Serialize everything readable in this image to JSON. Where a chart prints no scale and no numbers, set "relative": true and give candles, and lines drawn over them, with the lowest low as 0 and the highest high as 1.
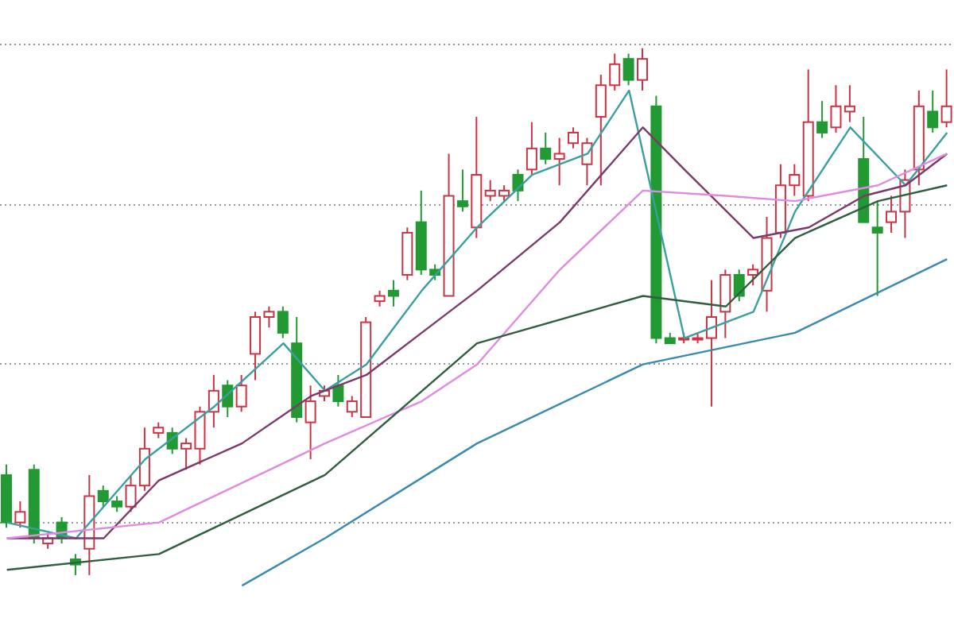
{
  "chart_data": {
    "type": "candlestick",
    "relative": true,
    "grid": "y",
    "marker": "none",
    "line_style": "solid",
    "categories": [
      null,
      null,
      null,
      null,
      null,
      null,
      null,
      null,
      null,
      null,
      null,
      null,
      null,
      null,
      null,
      null,
      null,
      null,
      null,
      null,
      null,
      null,
      null,
      null,
      null,
      null,
      null,
      null,
      null,
      null,
      null,
      null,
      null,
      null,
      null,
      null,
      null,
      null,
      null,
      null,
      null,
      null,
      null,
      null,
      null,
      null,
      null,
      null,
      null,
      null,
      null,
      null,
      null,
      null,
      null,
      null,
      null,
      null,
      null,
      null,
      null,
      null,
      null,
      null,
      null,
      null,
      null,
      null,
      null
    ],
    "colors": [
      "#229933",
      "#cc3344",
      "#229933",
      "#cc3344",
      "#229933",
      "#229933",
      "#cc3344",
      "#229933",
      "#229933",
      "#cc3344",
      "#cc3344",
      "#cc3344",
      "#229933",
      "#cc3344",
      "#cc3344",
      "#cc3344",
      "#229933",
      "#cc3344",
      "#cc3344",
      "#cc3344",
      "#229933",
      "#229933",
      "#cc3344",
      "#cc3344",
      "#229933",
      "#cc3344",
      "#cc3344",
      "#cc3344",
      "#229933",
      "#cc3344",
      "#229933",
      "#229933",
      "#cc3344",
      "#229933",
      "#cc3344",
      "#cc3344",
      "#cc3344",
      "#229933",
      "#cc3344",
      "#229933",
      "#cc3344",
      "#cc3344",
      "#cc3344",
      "#cc3344",
      "#cc3344",
      "#229933",
      "#cc3344",
      "#229933",
      "#229933",
      "#cc3344",
      "#cc3344",
      "#cc3344",
      "#cc3344",
      "#229933",
      "#cc3344",
      "#cc3344",
      "#cc3344",
      "#cc3344",
      "#cc3344",
      "#229933",
      "#cc3344",
      "#cc3344",
      "#229933",
      "#229933",
      "#cc3344",
      "#cc3344",
      "#cc3344",
      "#229933",
      "#cc3344"
    ],
    "ohlc": [
      [
        0.19,
        0.21,
        0.09,
        0.1
      ],
      [
        0.1,
        0.14,
        0.09,
        0.12
      ],
      [
        0.2,
        0.21,
        0.06,
        0.07
      ],
      [
        0.06,
        0.08,
        0.05,
        0.07
      ],
      [
        0.1,
        0.11,
        0.06,
        0.07
      ],
      [
        0.03,
        0.04,
        0,
        0.02
      ],
      [
        0.05,
        0.19,
        0,
        0.15
      ],
      [
        0.16,
        0.17,
        0.13,
        0.14
      ],
      [
        0.14,
        0.15,
        0.12,
        0.13
      ],
      [
        0.13,
        0.19,
        0.12,
        0.17
      ],
      [
        0.17,
        0.28,
        0.16,
        0.24
      ],
      [
        0.27,
        0.29,
        0.26,
        0.28
      ],
      [
        0.27,
        0.28,
        0.23,
        0.24
      ],
      [
        0.24,
        0.26,
        0.2,
        0.25
      ],
      [
        0.24,
        0.32,
        0.21,
        0.31
      ],
      [
        0.31,
        0.38,
        0.28,
        0.35
      ],
      [
        0.36,
        0.37,
        0.3,
        0.32
      ],
      [
        0.32,
        0.38,
        0.31,
        0.36
      ],
      [
        0.42,
        0.5,
        0.37,
        0.49
      ],
      [
        0.49,
        0.51,
        0.47,
        0.5
      ],
      [
        0.5,
        0.51,
        0.45,
        0.46
      ],
      [
        0.44,
        0.49,
        0.29,
        0.3
      ],
      [
        0.29,
        0.36,
        0.22,
        0.33
      ],
      [
        0.34,
        0.36,
        0.33,
        0.35
      ],
      [
        0.36,
        0.38,
        0.32,
        0.33
      ],
      [
        0.31,
        0.34,
        0.3,
        0.33
      ],
      [
        0.3,
        0.49,
        0.3,
        0.48
      ],
      [
        0.52,
        0.54,
        0.51,
        0.53
      ],
      [
        0.54,
        0.56,
        0.51,
        0.53
      ],
      [
        0.57,
        0.66,
        0.56,
        0.65
      ],
      [
        0.67,
        0.73,
        0.57,
        0.58
      ],
      [
        0.58,
        0.59,
        0.56,
        0.57
      ],
      [
        0.53,
        0.8,
        0.53,
        0.72
      ],
      [
        0.71,
        0.77,
        0.69,
        0.7
      ],
      [
        0.66,
        0.87,
        0.64,
        0.76
      ],
      [
        0.72,
        0.75,
        0.71,
        0.73
      ],
      [
        0.72,
        0.74,
        0.71,
        0.73
      ],
      [
        0.76,
        0.77,
        0.71,
        0.73
      ],
      [
        0.77,
        0.86,
        0.76,
        0.81
      ],
      [
        0.81,
        0.84,
        0.78,
        0.79
      ],
      [
        0.79,
        0.83,
        0.74,
        0.8
      ],
      [
        0.82,
        0.85,
        0.81,
        0.84
      ],
      [
        0.78,
        0.83,
        0.74,
        0.82
      ],
      [
        0.87,
        0.95,
        0.74,
        0.93
      ],
      [
        0.93,
        0.99,
        0.92,
        0.97
      ],
      [
        0.98,
        0.99,
        0.93,
        0.94
      ],
      [
        0.94,
        1,
        0.92,
        0.98
      ],
      [
        0.89,
        0.91,
        0.44,
        0.45
      ],
      [
        0.45,
        0.46,
        0.44,
        0.44
      ],
      [
        0.45,
        0.46,
        0.44,
        0.45
      ],
      [
        0.45,
        0.46,
        0.44,
        0.45
      ],
      [
        0.45,
        0.56,
        0.32,
        0.49
      ],
      [
        0.5,
        0.58,
        0.45,
        0.57
      ],
      [
        0.57,
        0.58,
        0.52,
        0.53
      ],
      [
        0.57,
        0.59,
        0.55,
        0.58
      ],
      [
        0.54,
        0.68,
        0.5,
        0.64
      ],
      [
        0.65,
        0.78,
        0.64,
        0.74
      ],
      [
        0.74,
        0.78,
        0.72,
        0.76
      ],
      [
        0.72,
        0.96,
        0.71,
        0.86
      ],
      [
        0.86,
        0.9,
        0.83,
        0.84
      ],
      [
        0.85,
        0.93,
        0.84,
        0.89
      ],
      [
        0.88,
        0.93,
        0.86,
        0.89
      ],
      [
        0.79,
        0.87,
        0.67,
        0.67
      ],
      [
        0.66,
        0.71,
        0.53,
        0.65
      ],
      [
        0.67,
        0.72,
        0.65,
        0.69
      ],
      [
        0.69,
        0.77,
        0.64,
        0.75
      ],
      [
        0.77,
        0.92,
        0.74,
        0.89
      ],
      [
        0.88,
        0.92,
        0.84,
        0.85
      ],
      [
        0.86,
        0.96,
        0.85,
        0.89
      ]
    ],
    "series": [
      {
        "type": "line",
        "color": "#3a9f9f",
        "values": [
          0.1,
          null,
          null,
          null,
          null,
          0.07,
          null,
          null,
          null,
          null,
          0.22,
          null,
          null,
          null,
          null,
          0.32,
          null,
          null,
          null,
          null,
          0.44,
          null,
          null,
          0.35,
          null,
          null,
          0.4,
          null,
          null,
          null,
          0.54,
          null,
          null,
          null,
          0.66,
          null,
          null,
          null,
          0.76,
          null,
          null,
          null,
          0.8,
          null,
          null,
          0.92,
          null,
          null,
          null,
          0.45,
          null,
          null,
          null,
          null,
          0.5,
          null,
          null,
          0.69,
          null,
          null,
          null,
          0.85,
          null,
          null,
          null,
          0.74,
          null,
          null,
          0.84
        ]
      },
      {
        "type": "line",
        "color": "#7a3a6a",
        "values": [
          0.07,
          null,
          null,
          null,
          null,
          null,
          null,
          0.07,
          null,
          null,
          null,
          0.18,
          null,
          null,
          null,
          null,
          null,
          0.25,
          null,
          null,
          null,
          null,
          0.34,
          null,
          null,
          null,
          0.38,
          null,
          null,
          null,
          0.46,
          null,
          null,
          null,
          0.54,
          null,
          null,
          null,
          null,
          null,
          0.67,
          null,
          null,
          null,
          null,
          null,
          0.85,
          null,
          null,
          0.77,
          null,
          null,
          null,
          null,
          0.64,
          null,
          null,
          null,
          0.66,
          null,
          null,
          null,
          0.72,
          null,
          null,
          0.74,
          null,
          null,
          0.8
        ]
      },
      {
        "type": "line",
        "color": "#e08ae0",
        "values": [
          0.07,
          null,
          null,
          null,
          null,
          null,
          null,
          null,
          null,
          null,
          null,
          0.1,
          null,
          null,
          null,
          null,
          null,
          null,
          null,
          null,
          null,
          null,
          null,
          0.25,
          null,
          null,
          null,
          null,
          null,
          null,
          0.33,
          null,
          null,
          null,
          0.4,
          null,
          null,
          null,
          null,
          null,
          0.58,
          null,
          null,
          null,
          null,
          null,
          0.73,
          null,
          null,
          null,
          null,
          null,
          0.72,
          null,
          null,
          null,
          null,
          0.71,
          null,
          null,
          null,
          null,
          null,
          0.74,
          null,
          null,
          null,
          null,
          0.8
        ]
      },
      {
        "type": "line",
        "color": "#2f5f3f",
        "values": [
          0.01,
          null,
          null,
          null,
          null,
          null,
          null,
          null,
          null,
          null,
          null,
          0.04,
          null,
          null,
          null,
          null,
          null,
          null,
          null,
          null,
          null,
          null,
          null,
          0.19,
          null,
          null,
          null,
          null,
          null,
          null,
          null,
          null,
          null,
          null,
          0.44,
          null,
          null,
          null,
          null,
          null,
          null,
          null,
          null,
          null,
          null,
          null,
          0.53,
          null,
          null,
          null,
          null,
          null,
          0.51,
          null,
          null,
          null,
          null,
          0.64,
          null,
          null,
          null,
          null,
          null,
          0.71,
          null,
          null,
          null,
          null,
          0.74
        ]
      },
      {
        "type": "line",
        "color": "#3a8ab0",
        "values": [
          null,
          null,
          null,
          null,
          null,
          null,
          null,
          null,
          null,
          null,
          null,
          null,
          null,
          null,
          null,
          null,
          null,
          -0.02,
          null,
          null,
          null,
          null,
          null,
          0.07,
          null,
          null,
          null,
          null,
          null,
          null,
          null,
          null,
          null,
          null,
          0.25,
          null,
          null,
          null,
          null,
          null,
          null,
          null,
          null,
          null,
          null,
          null,
          0.4,
          null,
          null,
          null,
          null,
          null,
          null,
          null,
          null,
          null,
          null,
          0.46,
          null,
          null,
          null,
          null,
          null,
          null,
          null,
          null,
          null,
          null,
          0.6
        ]
      }
    ]
  }
}
